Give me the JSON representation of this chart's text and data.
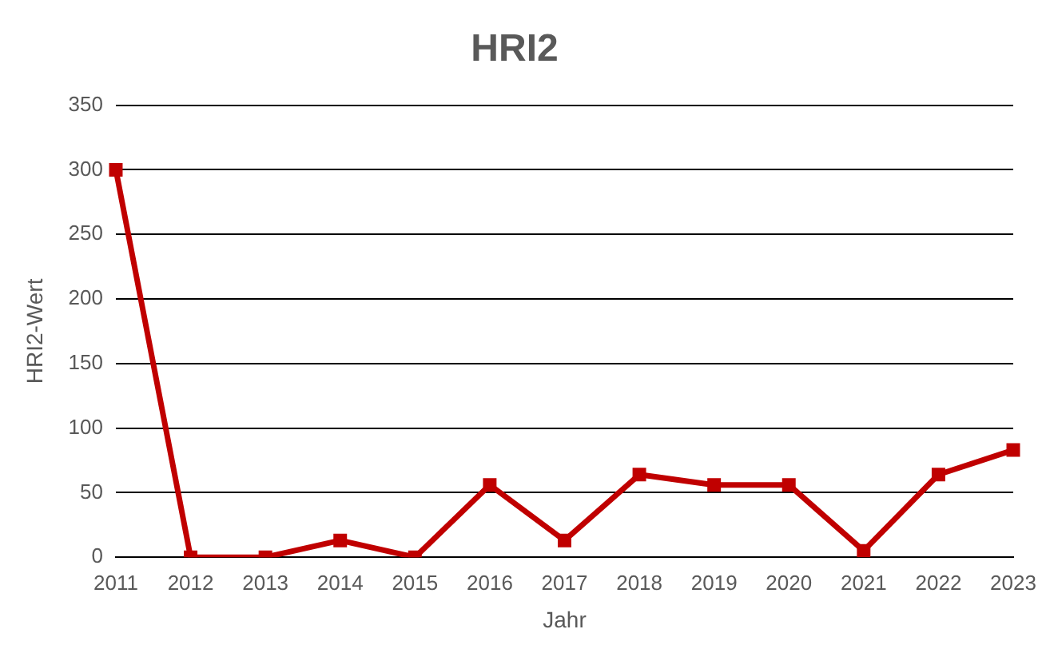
{
  "chart_data": {
    "type": "line",
    "title": "HRI2",
    "xlabel": "Jahr",
    "ylabel": "HRI2-Wert",
    "categories": [
      "2011",
      "2012",
      "2013",
      "2014",
      "2015",
      "2016",
      "2017",
      "2018",
      "2019",
      "2020",
      "2021",
      "2022",
      "2023"
    ],
    "series": [
      {
        "color": "#c00000",
        "values": [
          300,
          0,
          0,
          13,
          0,
          56,
          13,
          64,
          56,
          56,
          5,
          64,
          83
        ]
      }
    ],
    "ylim": [
      0,
      350
    ],
    "yticks": [
      0,
      50,
      100,
      150,
      200,
      250,
      300,
      350
    ],
    "grid": "y",
    "marker": "square",
    "line_style": "solid",
    "legend": false
  }
}
